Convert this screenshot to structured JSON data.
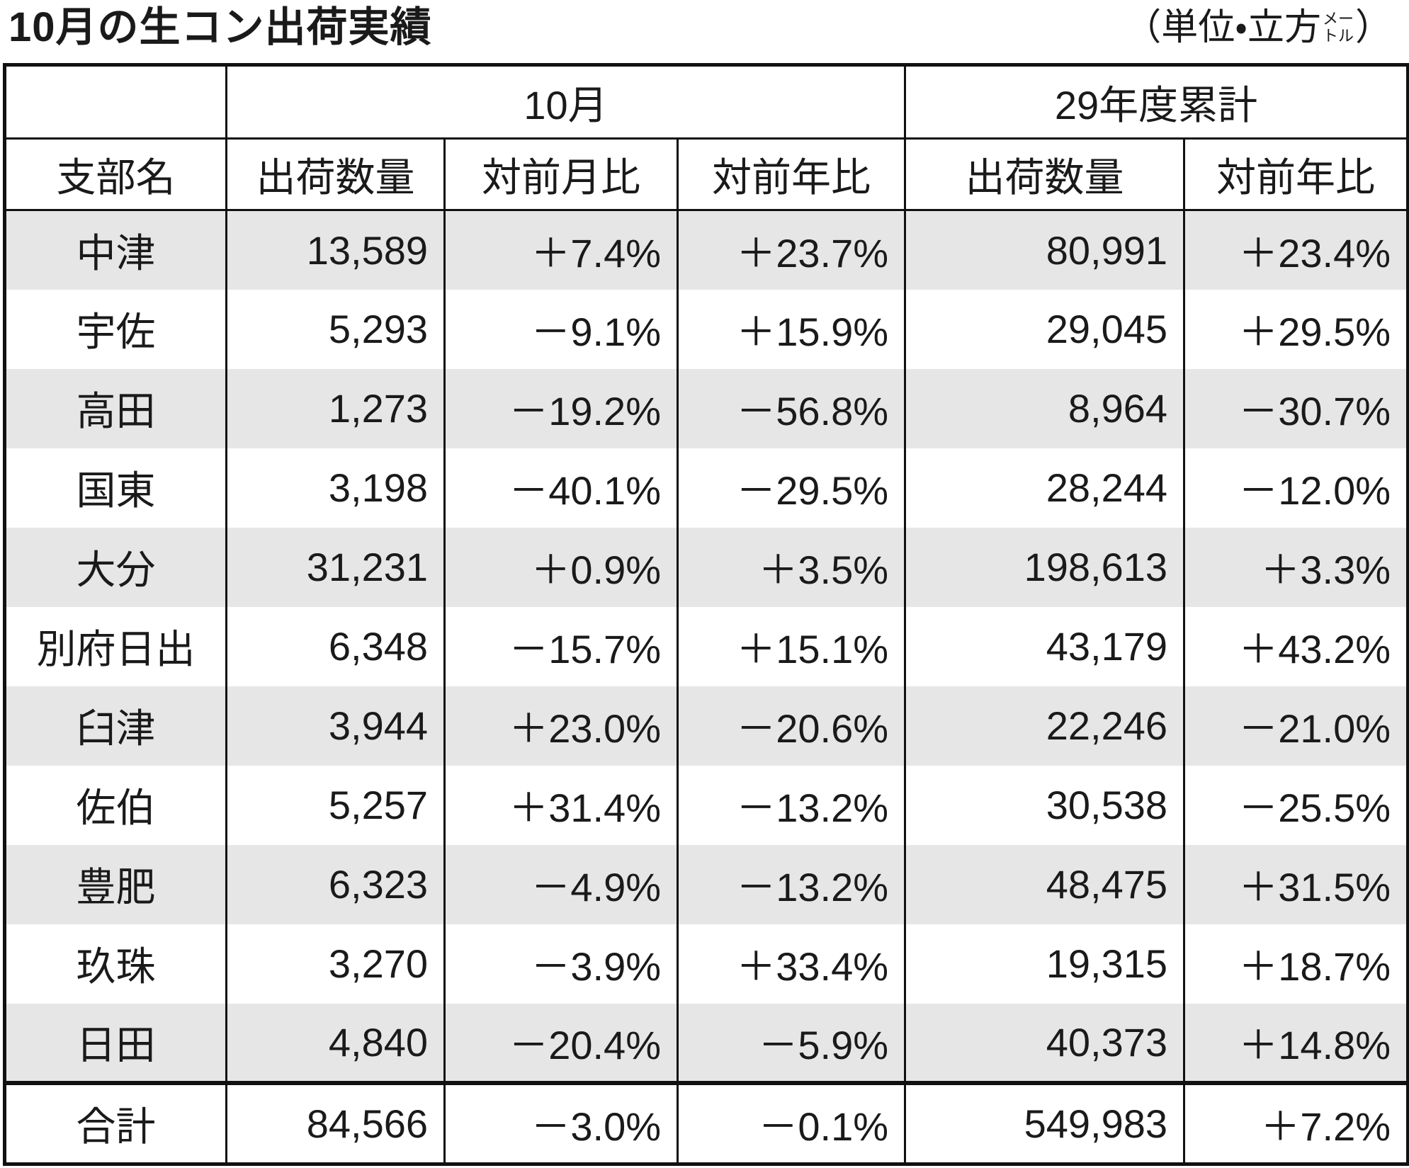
{
  "title": "10月の生コン出荷実績",
  "unit": {
    "prefix": "（単位・立方",
    "small_top": "メー",
    "small_bottom": "トル",
    "suffix": "）"
  },
  "table": {
    "group_headers": [
      "10月",
      "29年度累計"
    ],
    "columns": [
      "支部名",
      "出荷数量",
      "対前月比",
      "対前年比",
      "出荷数量",
      "対前年比"
    ],
    "rows": [
      [
        "中津",
        "13,589",
        "＋7.4%",
        "＋23.7%",
        "80,991",
        "＋23.4%"
      ],
      [
        "宇佐",
        "5,293",
        "－9.1%",
        "＋15.9%",
        "29,045",
        "＋29.5%"
      ],
      [
        "高田",
        "1,273",
        "－19.2%",
        "－56.8%",
        "8,964",
        "－30.7%"
      ],
      [
        "国東",
        "3,198",
        "－40.1%",
        "－29.5%",
        "28,244",
        "－12.0%"
      ],
      [
        "大分",
        "31,231",
        "＋0.9%",
        "＋3.5%",
        "198,613",
        "＋3.3%"
      ],
      [
        "別府日出",
        "6,348",
        "－15.7%",
        "＋15.1%",
        "43,179",
        "＋43.2%"
      ],
      [
        "臼津",
        "3,944",
        "＋23.0%",
        "－20.6%",
        "22,246",
        "－21.0%"
      ],
      [
        "佐伯",
        "5,257",
        "＋31.4%",
        "－13.2%",
        "30,538",
        "－25.5%"
      ],
      [
        "豊肥",
        "6,323",
        "－4.9%",
        "－13.2%",
        "48,475",
        "＋31.5%"
      ],
      [
        "玖珠",
        "3,270",
        "－3.9%",
        "＋33.4%",
        "19,315",
        "＋18.7%"
      ],
      [
        "日田",
        "4,840",
        "－20.4%",
        "－5.9%",
        "40,373",
        "＋14.8%"
      ]
    ],
    "total": [
      "合計",
      "84,566",
      "－3.0%",
      "－0.1%",
      "549,983",
      "＋7.2%"
    ]
  }
}
